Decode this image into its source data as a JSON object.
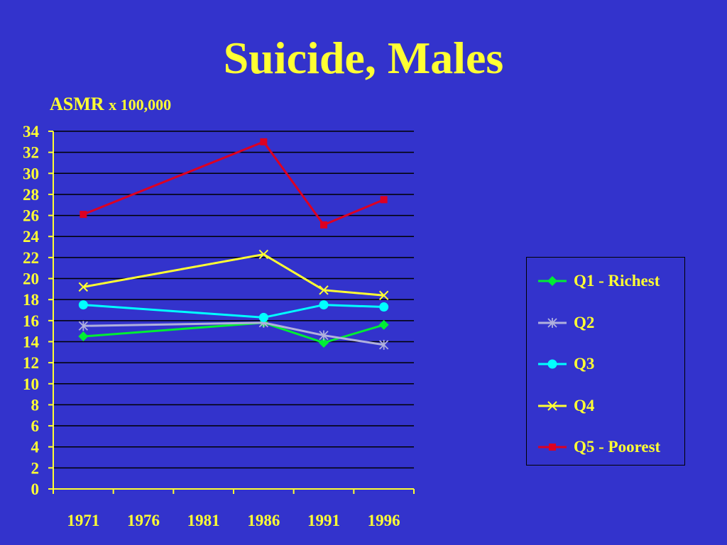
{
  "title": "Suicide, Males",
  "ylabel_main": "ASMR",
  "ylabel_unit": "x 100,000",
  "colors": {
    "background": "#3333cc",
    "text": "#ffff33",
    "grid": "#000000",
    "axis": "#ffff33"
  },
  "chart_data": {
    "type": "line",
    "title": "Suicide, Males",
    "ylabel": "ASMR x 100,000",
    "xlabel": "",
    "ylim": [
      0,
      34
    ],
    "yticks": [
      0,
      2,
      4,
      6,
      8,
      10,
      12,
      14,
      16,
      18,
      20,
      22,
      24,
      26,
      28,
      30,
      32,
      34
    ],
    "categories": [
      "1971",
      "1976",
      "1981",
      "1986",
      "1991",
      "1996"
    ],
    "grid": true,
    "legend_position": "right",
    "series": [
      {
        "name": "Q1 - Richest",
        "color": "#00ee33",
        "marker": "diamond",
        "points": [
          {
            "x": 1971,
            "y": 14.5
          },
          {
            "x": 1986,
            "y": 15.8
          },
          {
            "x": 1991,
            "y": 13.9
          },
          {
            "x": 1996,
            "y": 15.6
          }
        ]
      },
      {
        "name": "Q2",
        "color": "#b0b0dd",
        "marker": "asterisk",
        "points": [
          {
            "x": 1971,
            "y": 15.5
          },
          {
            "x": 1986,
            "y": 15.8
          },
          {
            "x": 1991,
            "y": 14.6
          },
          {
            "x": 1996,
            "y": 13.7
          }
        ]
      },
      {
        "name": "Q3",
        "color": "#00ffff",
        "marker": "circle",
        "points": [
          {
            "x": 1971,
            "y": 17.5
          },
          {
            "x": 1986,
            "y": 16.3
          },
          {
            "x": 1991,
            "y": 17.5
          },
          {
            "x": 1996,
            "y": 17.3
          }
        ]
      },
      {
        "name": "Q4",
        "color": "#ffff33",
        "marker": "x",
        "points": [
          {
            "x": 1971,
            "y": 19.2
          },
          {
            "x": 1986,
            "y": 22.3
          },
          {
            "x": 1991,
            "y": 18.9
          },
          {
            "x": 1996,
            "y": 18.4
          }
        ]
      },
      {
        "name": "Q5 - Poorest",
        "color": "#dd0022",
        "marker": "square",
        "points": [
          {
            "x": 1971,
            "y": 26.1
          },
          {
            "x": 1986,
            "y": 33.0
          },
          {
            "x": 1991,
            "y": 25.1
          },
          {
            "x": 1996,
            "y": 27.5
          }
        ]
      }
    ]
  }
}
